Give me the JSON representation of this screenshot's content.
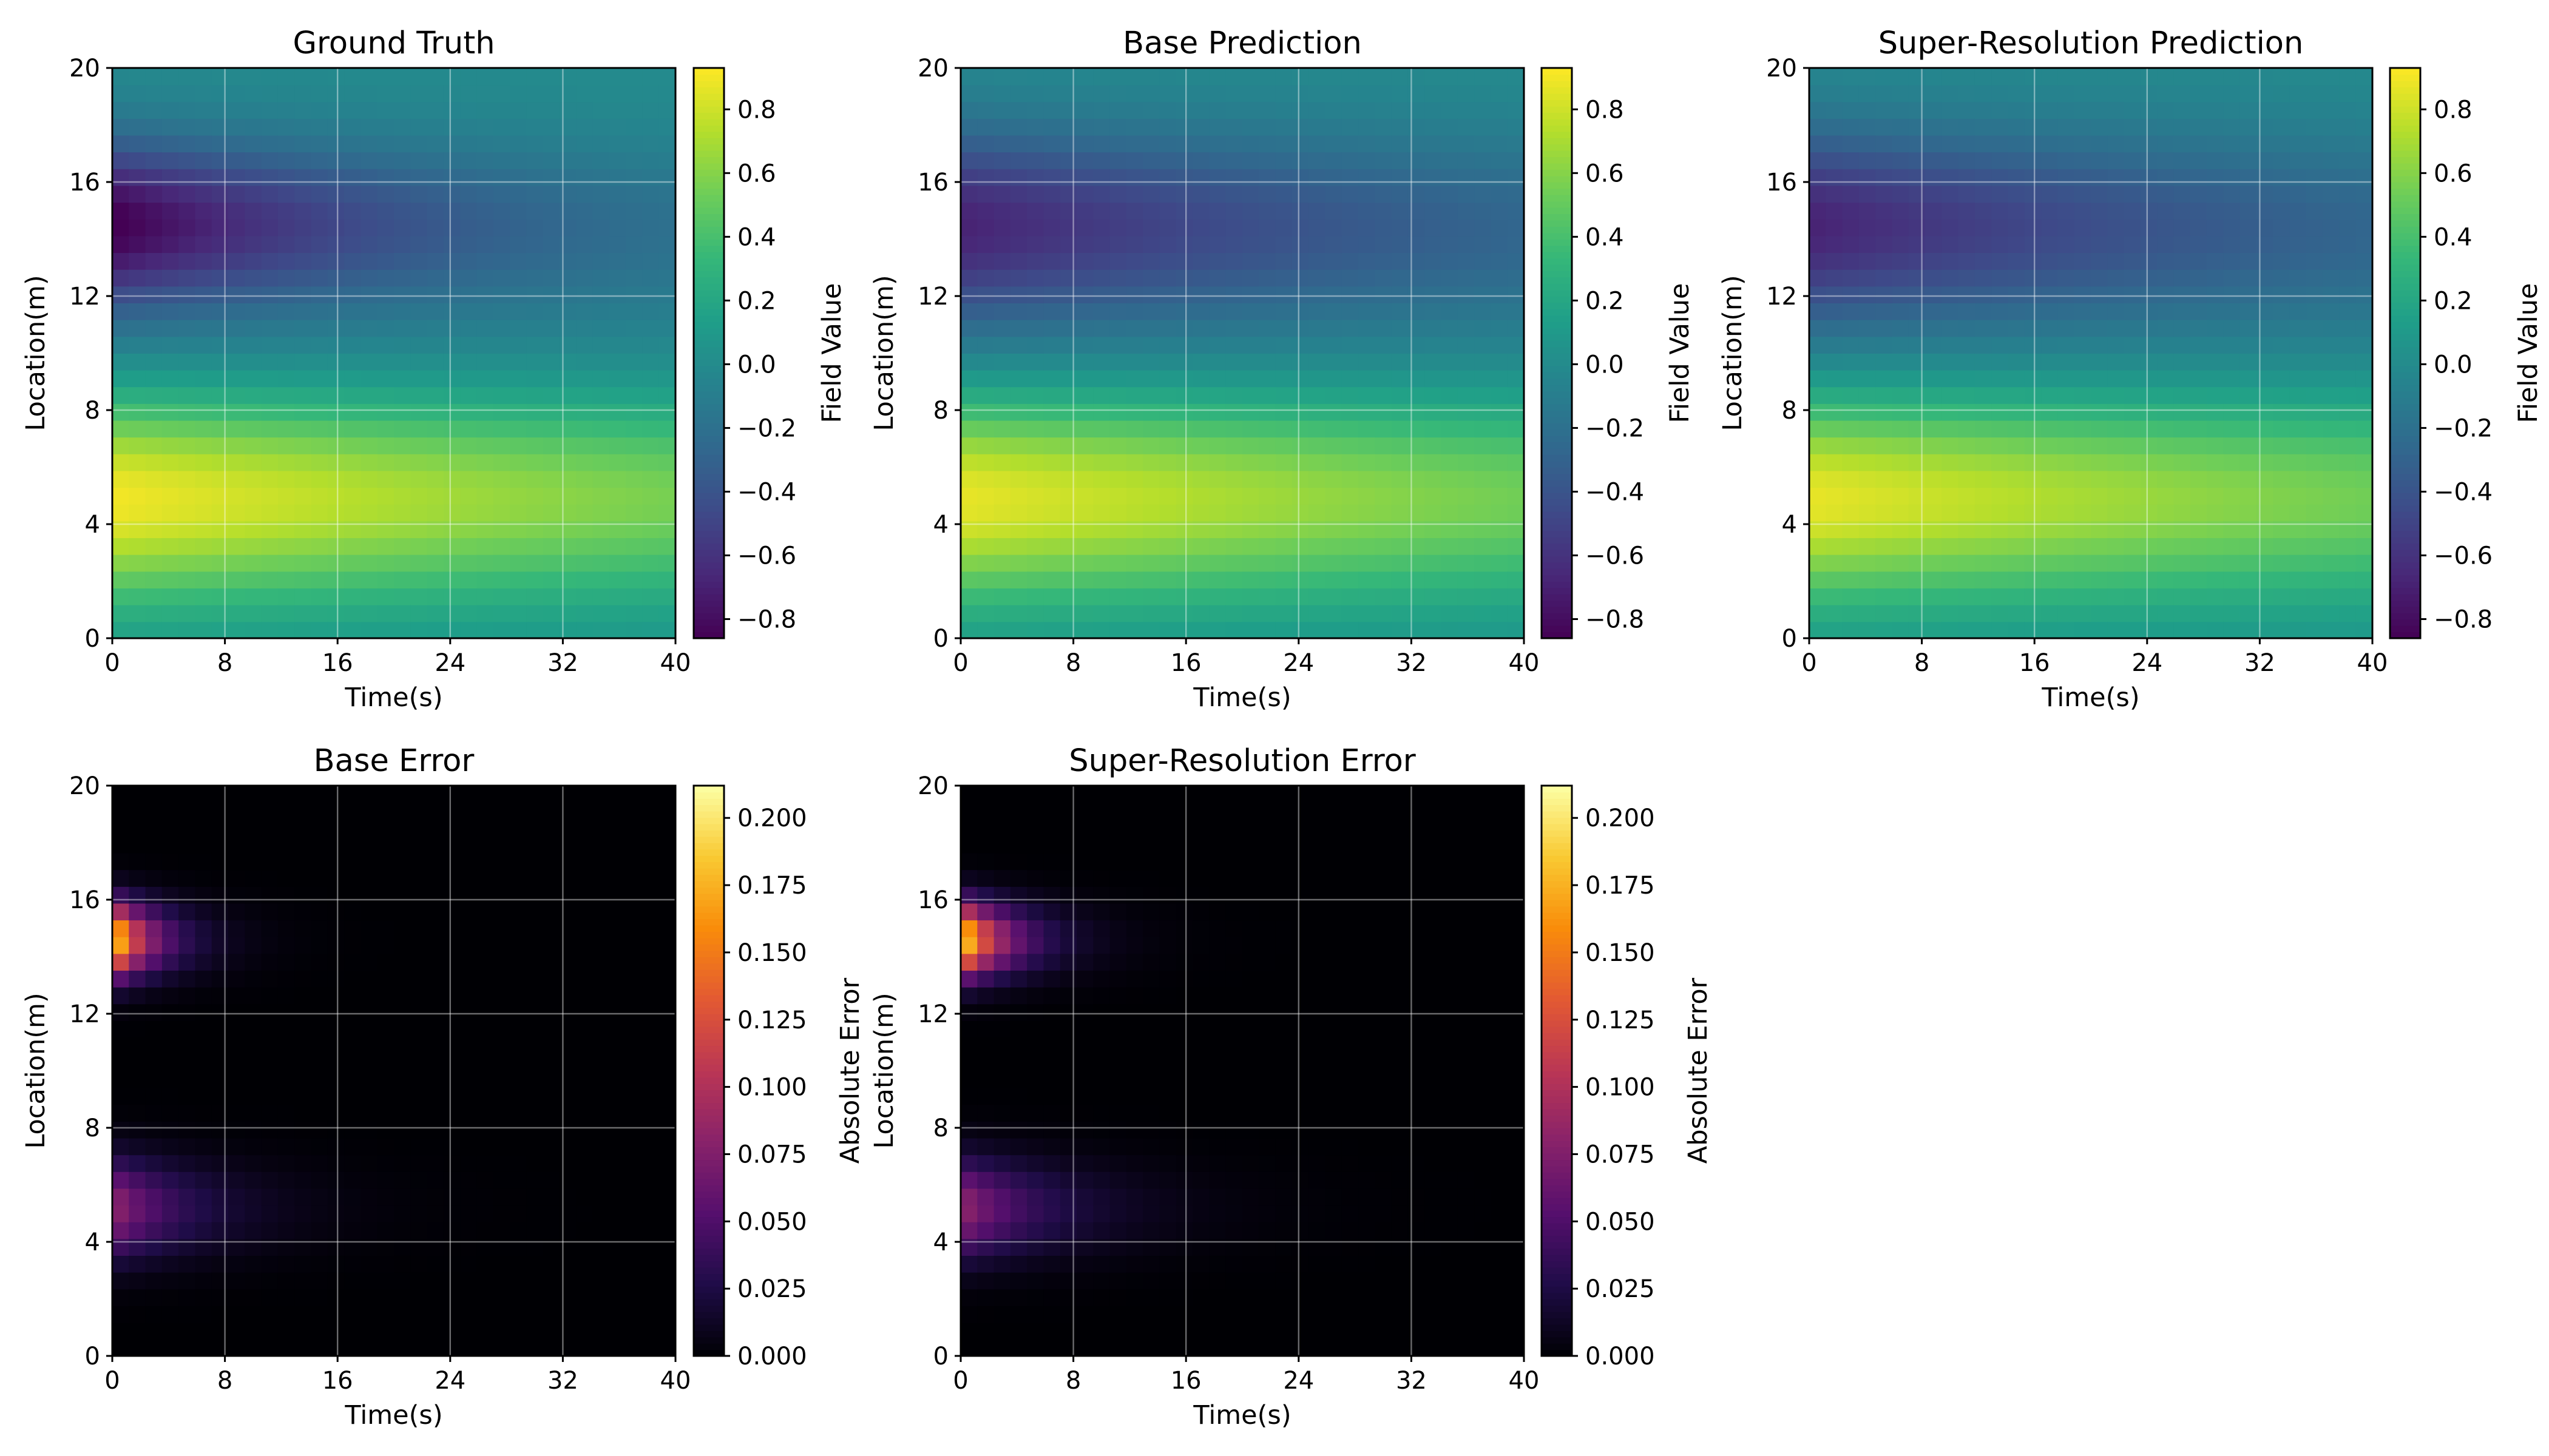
{
  "chart_data": [
    {
      "type": "heatmap",
      "title": "Ground Truth",
      "xlabel": "Time(s)",
      "ylabel": "Location(m)",
      "xlim": [
        0,
        40
      ],
      "ylim": [
        0,
        20
      ],
      "xticks": [
        "0",
        "8",
        "16",
        "24",
        "32",
        "40"
      ],
      "yticks": [
        "0",
        "4",
        "8",
        "12",
        "16",
        "20"
      ],
      "grid": true,
      "colormap": "viridis",
      "field": {
        "pos_amp": 0.93,
        "neg_amp": -0.86,
        "pos_center_m": 5.0,
        "neg_center_m": 14.6,
        "pos_width_m": 2.6,
        "neg_width_m": 2.0,
        "pos_decay_s": 0.012,
        "neg_decay_s": 0.04
      },
      "colorbar": {
        "label": "Field Value",
        "range": [
          -0.86,
          0.93
        ],
        "ticks": [
          "−0.8",
          "−0.6",
          "−0.4",
          "−0.2",
          "0.0",
          "0.2",
          "0.4",
          "0.6",
          "0.8"
        ],
        "tick_values": [
          -0.8,
          -0.6,
          -0.4,
          -0.2,
          0.0,
          0.2,
          0.4,
          0.6,
          0.8
        ]
      }
    },
    {
      "type": "heatmap",
      "title": "Base Prediction",
      "xlabel": "Time(s)",
      "ylabel": "Location(m)",
      "xlim": [
        0,
        40
      ],
      "ylim": [
        0,
        20
      ],
      "xticks": [
        "0",
        "8",
        "16",
        "24",
        "32",
        "40"
      ],
      "yticks": [
        "0",
        "4",
        "8",
        "12",
        "16",
        "20"
      ],
      "grid": true,
      "colormap": "viridis",
      "field": {
        "pos_amp": 0.9,
        "neg_amp": -0.66,
        "pos_center_m": 5.0,
        "neg_center_m": 14.6,
        "pos_width_m": 2.6,
        "neg_width_m": 2.3,
        "pos_decay_s": 0.012,
        "neg_decay_s": 0.024
      },
      "colorbar": {
        "label": "Field Value",
        "range": [
          -0.86,
          0.93
        ],
        "ticks": [
          "−0.8",
          "−0.6",
          "−0.4",
          "−0.2",
          "0.0",
          "0.2",
          "0.4",
          "0.6",
          "0.8"
        ],
        "tick_values": [
          -0.8,
          -0.6,
          -0.4,
          -0.2,
          0.0,
          0.2,
          0.4,
          0.6,
          0.8
        ]
      }
    },
    {
      "type": "heatmap",
      "title": "Super-Resolution Prediction",
      "xlabel": "Time(s)",
      "ylabel": "Location(m)",
      "xlim": [
        0,
        40
      ],
      "ylim": [
        0,
        20
      ],
      "xticks": [
        "0",
        "8",
        "16",
        "24",
        "32",
        "40"
      ],
      "yticks": [
        "0",
        "4",
        "8",
        "12",
        "16",
        "20"
      ],
      "grid": true,
      "colormap": "viridis",
      "field": {
        "pos_amp": 0.9,
        "neg_amp": -0.66,
        "pos_center_m": 5.0,
        "neg_center_m": 14.6,
        "pos_width_m": 2.6,
        "neg_width_m": 2.3,
        "pos_decay_s": 0.012,
        "neg_decay_s": 0.024
      },
      "colorbar": {
        "label": "Field Value",
        "range": [
          -0.86,
          0.93
        ],
        "ticks": [
          "−0.8",
          "−0.6",
          "−0.4",
          "−0.2",
          "0.0",
          "0.2",
          "0.4",
          "0.6",
          "0.8"
        ],
        "tick_values": [
          -0.8,
          -0.6,
          -0.4,
          -0.2,
          0.0,
          0.2,
          0.4,
          0.6,
          0.8
        ]
      }
    },
    {
      "type": "heatmap",
      "title": "Base Error",
      "xlabel": "Time(s)",
      "ylabel": "Location(m)",
      "xlim": [
        0,
        40
      ],
      "ylim": [
        0,
        20
      ],
      "xticks": [
        "0",
        "8",
        "16",
        "24",
        "32",
        "40"
      ],
      "yticks": [
        "0",
        "4",
        "8",
        "12",
        "16",
        "20"
      ],
      "grid": true,
      "colormap": "inferno",
      "field": {
        "spots": [
          {
            "amp": 0.21,
            "center_m": 14.6,
            "width_m": 0.9,
            "decay_s": 0.35
          },
          {
            "amp": 0.085,
            "center_m": 5.2,
            "width_m": 1.2,
            "decay_s": 0.18
          }
        ]
      },
      "colorbar": {
        "label": "Absolute Error",
        "range": [
          0.0,
          0.212
        ],
        "ticks": [
          "0.000",
          "0.025",
          "0.050",
          "0.075",
          "0.100",
          "0.125",
          "0.150",
          "0.175",
          "0.200"
        ],
        "tick_values": [
          0.0,
          0.025,
          0.05,
          0.075,
          0.1,
          0.125,
          0.15,
          0.175,
          0.2
        ]
      }
    },
    {
      "type": "heatmap",
      "title": "Super-Resolution Error",
      "xlabel": "Time(s)",
      "ylabel": "Location(m)",
      "xlim": [
        0,
        40
      ],
      "ylim": [
        0,
        20
      ],
      "xticks": [
        "0",
        "8",
        "16",
        "24",
        "32",
        "40"
      ],
      "yticks": [
        "0",
        "4",
        "8",
        "12",
        "16",
        "20"
      ],
      "grid": true,
      "colormap": "inferno",
      "field": {
        "spots": [
          {
            "amp": 0.21,
            "center_m": 14.6,
            "width_m": 0.9,
            "decay_s": 0.3
          },
          {
            "amp": 0.085,
            "center_m": 5.2,
            "width_m": 1.2,
            "decay_s": 0.16
          }
        ]
      },
      "colorbar": {
        "label": "Absolute Error",
        "range": [
          0.0,
          0.212
        ],
        "ticks": [
          "0.000",
          "0.025",
          "0.050",
          "0.075",
          "0.100",
          "0.125",
          "0.150",
          "0.175",
          "0.200"
        ],
        "tick_values": [
          0.0,
          0.025,
          0.05,
          0.075,
          0.1,
          0.125,
          0.15,
          0.175,
          0.2
        ]
      }
    }
  ]
}
